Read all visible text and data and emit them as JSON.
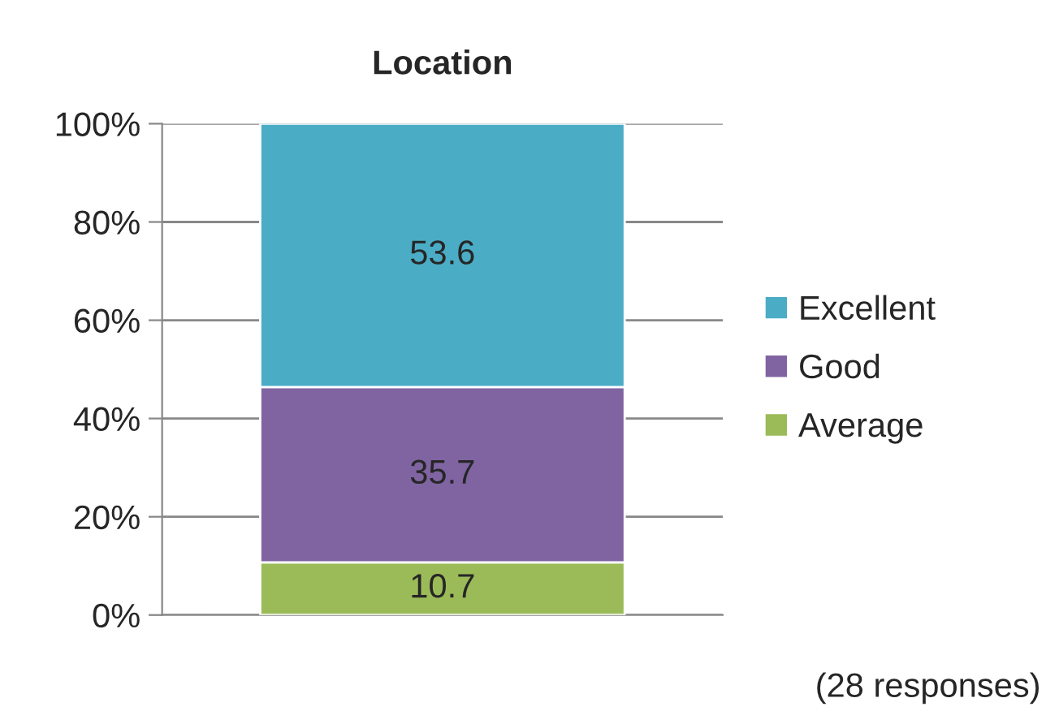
{
  "chart_data": {
    "type": "bar",
    "title": "Location",
    "stacked": true,
    "categories": [
      null
    ],
    "series": [
      {
        "name": "Average",
        "color": "#9bbb59",
        "values": [
          10.7
        ]
      },
      {
        "name": "Good",
        "color": "#8064a2",
        "values": [
          35.7
        ]
      },
      {
        "name": "Excellent",
        "color": "#4bacc6",
        "values": [
          53.6
        ]
      }
    ],
    "ylim": [
      0,
      100
    ],
    "yticks": [
      {
        "value": 0,
        "label": "0%"
      },
      {
        "value": 20,
        "label": "20%"
      },
      {
        "value": 40,
        "label": "40%"
      },
      {
        "value": 60,
        "label": "60%"
      },
      {
        "value": 80,
        "label": "80%"
      },
      {
        "value": 100,
        "label": "100%"
      }
    ],
    "grid": "y",
    "legend": "right",
    "data_labels": true,
    "annotations": [
      "(28 responses)"
    ]
  }
}
